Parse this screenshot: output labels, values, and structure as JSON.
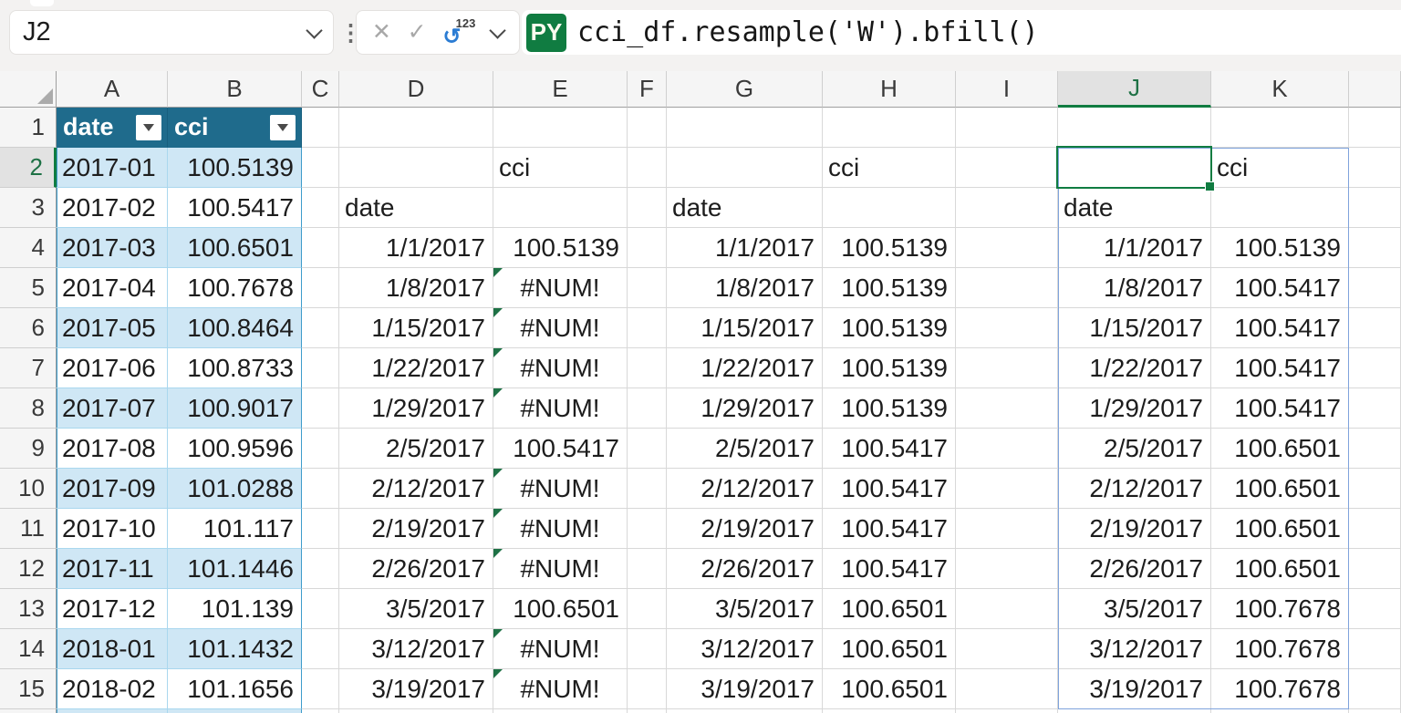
{
  "formula_bar": {
    "name_box": "J2",
    "drag_handle_icon": "⋮",
    "cancel_icon": "✕",
    "enter_icon": "✓",
    "convert_icon_arrow": "↺",
    "convert_icon_text": "123",
    "language_badge": "PY",
    "formula": "cci_df.resample('W').bfill()"
  },
  "grid": {
    "column_headers": [
      "A",
      "B",
      "C",
      "D",
      "E",
      "F",
      "G",
      "H",
      "I",
      "J",
      "K"
    ],
    "row_numbers": [
      "1",
      "2",
      "3",
      "4",
      "5",
      "6",
      "7",
      "8",
      "9",
      "10",
      "11",
      "12",
      "13",
      "14",
      "15"
    ],
    "selected_column": "J",
    "selected_row": "2",
    "selected_cell": "J2"
  },
  "monthly_table": {
    "columns": [
      "A",
      "B"
    ],
    "headers": [
      "date",
      "cci"
    ],
    "rows": [
      [
        "2017-01",
        "100.5139"
      ],
      [
        "2017-02",
        "100.5417"
      ],
      [
        "2017-03",
        "100.6501"
      ],
      [
        "2017-04",
        "100.7678"
      ],
      [
        "2017-05",
        "100.8464"
      ],
      [
        "2017-06",
        "100.8733"
      ],
      [
        "2017-07",
        "100.9017"
      ],
      [
        "2017-08",
        "100.9596"
      ],
      [
        "2017-09",
        "101.0288"
      ],
      [
        "2017-10",
        "101.117"
      ],
      [
        "2017-11",
        "101.1446"
      ],
      [
        "2017-12",
        "101.139"
      ],
      [
        "2018-01",
        "101.1432"
      ],
      [
        "2018-02",
        "101.1656"
      ]
    ]
  },
  "weekly_blocks": [
    {
      "date_column": "D",
      "value_column": "E",
      "value_header": "cci",
      "date_header": "date",
      "rows": [
        [
          "1/1/2017",
          "100.5139"
        ],
        [
          "1/8/2017",
          "#NUM!"
        ],
        [
          "1/15/2017",
          "#NUM!"
        ],
        [
          "1/22/2017",
          "#NUM!"
        ],
        [
          "1/29/2017",
          "#NUM!"
        ],
        [
          "2/5/2017",
          "100.5417"
        ],
        [
          "2/12/2017",
          "#NUM!"
        ],
        [
          "2/19/2017",
          "#NUM!"
        ],
        [
          "2/26/2017",
          "#NUM!"
        ],
        [
          "3/5/2017",
          "100.6501"
        ],
        [
          "3/12/2017",
          "#NUM!"
        ],
        [
          "3/19/2017",
          "#NUM!"
        ]
      ]
    },
    {
      "date_column": "G",
      "value_column": "H",
      "value_header": "cci",
      "date_header": "date",
      "rows": [
        [
          "1/1/2017",
          "100.5139"
        ],
        [
          "1/8/2017",
          "100.5139"
        ],
        [
          "1/15/2017",
          "100.5139"
        ],
        [
          "1/22/2017",
          "100.5139"
        ],
        [
          "1/29/2017",
          "100.5139"
        ],
        [
          "2/5/2017",
          "100.5417"
        ],
        [
          "2/12/2017",
          "100.5417"
        ],
        [
          "2/19/2017",
          "100.5417"
        ],
        [
          "2/26/2017",
          "100.5417"
        ],
        [
          "3/5/2017",
          "100.6501"
        ],
        [
          "3/12/2017",
          "100.6501"
        ],
        [
          "3/19/2017",
          "100.6501"
        ]
      ]
    },
    {
      "date_column": "J",
      "value_column": "K",
      "value_header": "cci",
      "date_header": "date",
      "rows": [
        [
          "1/1/2017",
          "100.5139"
        ],
        [
          "1/8/2017",
          "100.5417"
        ],
        [
          "1/15/2017",
          "100.5417"
        ],
        [
          "1/22/2017",
          "100.5417"
        ],
        [
          "1/29/2017",
          "100.5417"
        ],
        [
          "2/5/2017",
          "100.6501"
        ],
        [
          "2/12/2017",
          "100.6501"
        ],
        [
          "2/19/2017",
          "100.6501"
        ],
        [
          "2/26/2017",
          "100.6501"
        ],
        [
          "3/5/2017",
          "100.7678"
        ],
        [
          "3/12/2017",
          "100.7678"
        ],
        [
          "3/19/2017",
          "100.7678"
        ]
      ]
    }
  ],
  "colors": {
    "table_header_bg": "#1F6B8C",
    "table_band_bg": "#CFE7F5",
    "table_border": "#3E9CCB",
    "selection_green": "#107C41",
    "spill_border": "#7FA3DC",
    "error_triangle_green": "#1E7145",
    "python_badge_bg": "#107C41"
  }
}
